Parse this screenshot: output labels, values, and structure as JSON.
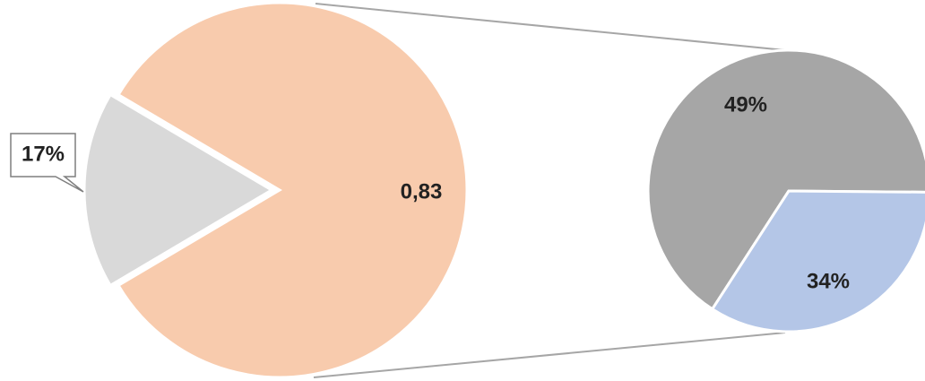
{
  "chart_data": [
    {
      "type": "pie",
      "role": "main",
      "slices": [
        {
          "label": "",
          "value": 0.83,
          "display": "0,83",
          "color": "#F8CBAD"
        },
        {
          "label": "",
          "value": 0.17,
          "display": "17%",
          "color": "#D9D9D9"
        }
      ],
      "callout_slice": 1,
      "exploded_slice": 0
    },
    {
      "type": "pie",
      "role": "breakdown",
      "slices": [
        {
          "label": "",
          "value": 0.49,
          "display": "49%",
          "color": "#A6A6A6"
        },
        {
          "label": "",
          "value": 0.34,
          "display": "34%",
          "color": "#B4C6E7"
        },
        {
          "label": "",
          "value": 0.17,
          "display": "",
          "color": "#A6A6A6"
        }
      ]
    }
  ],
  "colors": {
    "connector": "#A6A6A6",
    "slice_border": "#FFFFFF"
  }
}
